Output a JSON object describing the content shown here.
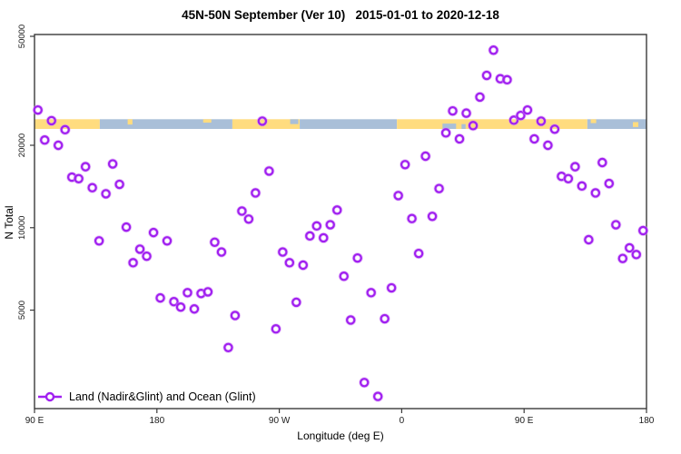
{
  "title": "45N-50N September (Ver 10)   2015-01-01 to 2020-12-18",
  "axes": {
    "x_label": "Longitude (deg E)",
    "y_label": "N Total",
    "x_tick_labels": [
      "90 E",
      "180",
      "90 W",
      "0",
      "90 E",
      "180"
    ],
    "y_tick_labels": [
      "50000",
      "20000",
      "10000",
      "5000"
    ]
  },
  "legend": {
    "label": "Land (Nadir&Glint) and Ocean (Glint)"
  },
  "colors": {
    "point": "#a020f0",
    "point_halo": "#d592f5",
    "land_band": "#ffdc7f",
    "ocean_band": "#a9bfd8",
    "axis": "#3a3a3a",
    "tick_text": "#1a1a1a"
  },
  "chart_data": {
    "type": "scatter",
    "title": "45N-50N September (Ver 10)   2015-01-01 to 2020-12-18",
    "xlabel": "Longitude (deg E)",
    "ylabel": "N Total",
    "y_scale": "log",
    "ylim": [
      2200,
      50800
    ],
    "x_axis_span_deg": 450,
    "x_axis_note": "x axis starts at 90E and wraps eastward 450 degrees: 90E,180,90W,0,90E,180",
    "x_ticks_deg": [
      0,
      90,
      180,
      270,
      360,
      450
    ],
    "x_tick_labels": [
      "90 E",
      "180",
      "90 W",
      "0",
      "90 E",
      "180"
    ],
    "y_ticks": [
      50000,
      20000,
      10000,
      5000
    ],
    "grid": false,
    "legend_position": "bottom-left-inside",
    "band": {
      "description": "land/ocean strip at 45N-50N drawn across plot",
      "value_range": [
        22950,
        24900
      ],
      "segments": [
        {
          "type": "land",
          "from_deg": 0,
          "to_deg": 48
        },
        {
          "type": "ocean",
          "from_deg": 48,
          "to_deg": 145.5
        },
        {
          "type": "land",
          "from_deg": 145.5,
          "to_deg": 195
        },
        {
          "type": "ocean",
          "from_deg": 195,
          "to_deg": 266.5
        },
        {
          "type": "land",
          "from_deg": 266.5,
          "to_deg": 406.5
        },
        {
          "type": "ocean",
          "from_deg": 406.5,
          "to_deg": 450
        }
      ],
      "patches": [
        {
          "type": "land",
          "from_deg": 68.5,
          "to_deg": 72,
          "y0": 0.0,
          "y1": 0.55
        },
        {
          "type": "land",
          "from_deg": 124,
          "to_deg": 130,
          "y0": 0.0,
          "y1": 0.35
        },
        {
          "type": "ocean",
          "from_deg": 188,
          "to_deg": 194,
          "y0": 0.0,
          "y1": 0.5
        },
        {
          "type": "ocean",
          "from_deg": 300,
          "to_deg": 310,
          "y0": 0.45,
          "y1": 1.0
        },
        {
          "type": "ocean",
          "from_deg": 314,
          "to_deg": 317,
          "y0": 0.5,
          "y1": 1.0
        },
        {
          "type": "land",
          "from_deg": 409,
          "to_deg": 413,
          "y0": 0.0,
          "y1": 0.4
        },
        {
          "type": "land",
          "from_deg": 440,
          "to_deg": 444,
          "y0": 0.3,
          "y1": 0.8
        }
      ]
    },
    "series": [
      {
        "name": "Land (Nadir&Glint) and Ocean (Glint)",
        "marker": "open-circle",
        "points_format": "[deg_along_axis_from_90E, N_total]",
        "points": [
          [
            2.5,
            26900
          ],
          [
            7.5,
            20900
          ],
          [
            12.5,
            24600
          ],
          [
            17.5,
            20000
          ],
          [
            22.5,
            22800
          ],
          [
            27.5,
            15300
          ],
          [
            32.5,
            15100
          ],
          [
            37.5,
            16700
          ],
          [
            42.5,
            14000
          ],
          [
            47.5,
            8950
          ],
          [
            52.5,
            13300
          ],
          [
            57.5,
            17100
          ],
          [
            62.5,
            14400
          ],
          [
            67.5,
            10050
          ],
          [
            72.5,
            7450
          ],
          [
            77.5,
            8350
          ],
          [
            82.5,
            7870
          ],
          [
            87.5,
            9600
          ],
          [
            92.5,
            5540
          ],
          [
            97.5,
            8950
          ],
          [
            102.5,
            5370
          ],
          [
            107.5,
            5130
          ],
          [
            112.5,
            5790
          ],
          [
            117.5,
            5050
          ],
          [
            122.5,
            5750
          ],
          [
            127.5,
            5830
          ],
          [
            132.5,
            8850
          ],
          [
            137.5,
            8150
          ],
          [
            142.5,
            3650
          ],
          [
            147.5,
            4780
          ],
          [
            152.5,
            11500
          ],
          [
            157.5,
            10750
          ],
          [
            162.5,
            13400
          ],
          [
            167.5,
            24500
          ],
          [
            172.5,
            16100
          ],
          [
            177.5,
            4270
          ],
          [
            182.5,
            8150
          ],
          [
            187.5,
            7450
          ],
          [
            192.5,
            5340
          ],
          [
            197.5,
            7300
          ],
          [
            202.5,
            9330
          ],
          [
            207.5,
            10150
          ],
          [
            212.5,
            9180
          ],
          [
            217.5,
            10250
          ],
          [
            222.5,
            11600
          ],
          [
            227.5,
            6650
          ],
          [
            232.5,
            4600
          ],
          [
            237.5,
            7750
          ],
          [
            242.5,
            2720
          ],
          [
            247.5,
            5790
          ],
          [
            252.5,
            2420
          ],
          [
            257.5,
            4650
          ],
          [
            262.5,
            6030
          ],
          [
            267.5,
            13100
          ],
          [
            272.5,
            17000
          ],
          [
            277.5,
            10800
          ],
          [
            282.5,
            8050
          ],
          [
            287.5,
            18250
          ],
          [
            292.5,
            11000
          ],
          [
            297.5,
            13900
          ],
          [
            302.5,
            22200
          ],
          [
            307.5,
            26700
          ],
          [
            312.5,
            21100
          ],
          [
            317.5,
            26200
          ],
          [
            322.5,
            23600
          ],
          [
            327.5,
            30000
          ],
          [
            332.5,
            36000
          ],
          [
            337.5,
            44500
          ],
          [
            342.5,
            35000
          ],
          [
            347.5,
            34700
          ],
          [
            352.5,
            24700
          ],
          [
            357.5,
            25700
          ],
          [
            362.5,
            26900
          ],
          [
            367.5,
            21100
          ],
          [
            372.5,
            24500
          ],
          [
            377.5,
            20000
          ],
          [
            382.5,
            22900
          ],
          [
            387.5,
            15400
          ],
          [
            392.5,
            15100
          ],
          [
            397.5,
            16700
          ],
          [
            402.5,
            14200
          ],
          [
            407.5,
            9040
          ],
          [
            412.5,
            13400
          ],
          [
            417.5,
            17300
          ],
          [
            422.5,
            14500
          ],
          [
            427.5,
            10250
          ],
          [
            432.5,
            7720
          ],
          [
            437.5,
            8440
          ],
          [
            442.5,
            7980
          ],
          [
            447.5,
            9760
          ]
        ]
      }
    ]
  }
}
